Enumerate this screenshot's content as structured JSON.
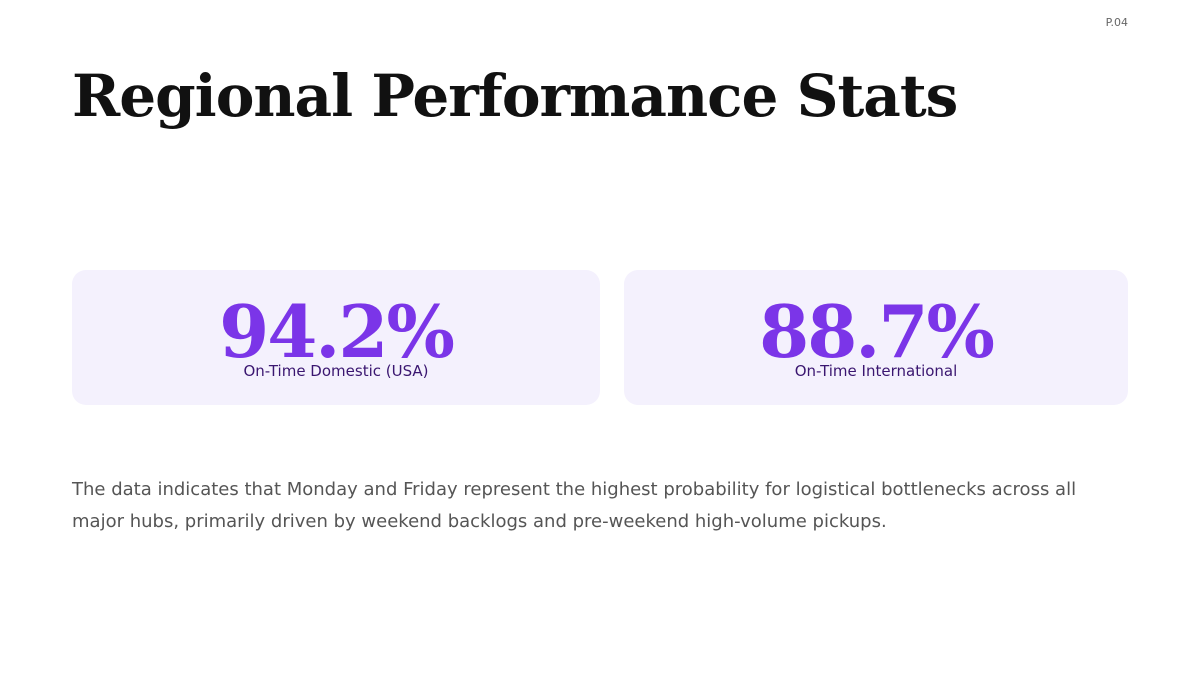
{
  "page_label": "P.04",
  "title": "Regional Performance Stats",
  "stats": [
    {
      "value": "94.2%",
      "label": "On-Time Domestic (USA)"
    },
    {
      "value": "88.7%",
      "label": "On-Time International"
    }
  ],
  "body": "The data indicates that Monday and Friday represent the highest probability for logistical bottlenecks across all major hubs, primarily driven by weekend backlogs and pre-weekend high-volume pickups."
}
